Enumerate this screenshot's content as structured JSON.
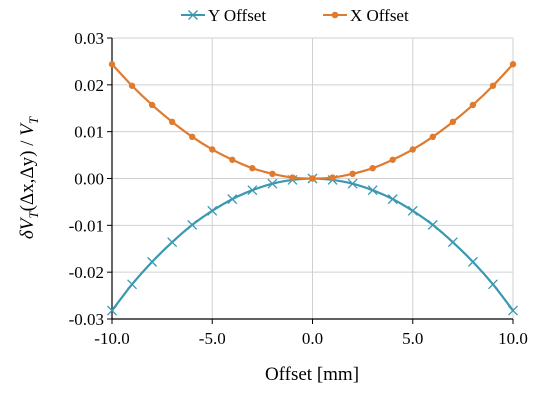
{
  "chart_data": {
    "type": "line",
    "title": "",
    "xlabel": "Offset [mm]",
    "ylabel": "δV_T(Δx,Δy) / V_T",
    "ylabel_parts": {
      "delta": "δ",
      "v": "V",
      "sub": "T",
      "args": "(Δx,Δy) / ",
      "v2": "V",
      "sub2": "T"
    },
    "xlim": [
      -10,
      10
    ],
    "ylim": [
      -0.03,
      0.03
    ],
    "x_ticks": [
      -10,
      -5,
      0,
      5,
      10
    ],
    "x_tick_labels": [
      "-10.0",
      "-5.0",
      "0.0",
      "5.0",
      "10.0"
    ],
    "y_ticks": [
      -0.03,
      -0.02,
      -0.01,
      0,
      0.01,
      0.02,
      0.03
    ],
    "y_tick_labels": [
      "-0.03",
      "-0.02",
      "-0.01",
      "0.00",
      "0.01",
      "0.02",
      "0.03"
    ],
    "grid": true,
    "legend_position": "top",
    "x": [
      -10,
      -9,
      -8,
      -7,
      -6,
      -5,
      -4,
      -3,
      -2,
      -1,
      0,
      1,
      2,
      3,
      4,
      5,
      6,
      7,
      8,
      9,
      10
    ],
    "series": [
      {
        "name": "Y Offset",
        "color": "#3a98b0",
        "marker": "asterisk",
        "values": [
          -0.0282,
          -0.0226,
          -0.0178,
          -0.0136,
          -0.0099,
          -0.0069,
          -0.0044,
          -0.0025,
          -0.0011,
          -0.0003,
          0.0,
          -0.0003,
          -0.0011,
          -0.0025,
          -0.0044,
          -0.0069,
          -0.0099,
          -0.0136,
          -0.0178,
          -0.0226,
          -0.0282
        ]
      },
      {
        "name": "X Offset",
        "color": "#e07b2e",
        "marker": "circle",
        "values": [
          0.0244,
          0.0198,
          0.0157,
          0.0121,
          0.0089,
          0.0062,
          0.004,
          0.0022,
          0.001,
          0.0002,
          0.0,
          0.0002,
          0.001,
          0.0022,
          0.004,
          0.0062,
          0.0089,
          0.0121,
          0.0157,
          0.0198,
          0.0244
        ]
      }
    ]
  }
}
